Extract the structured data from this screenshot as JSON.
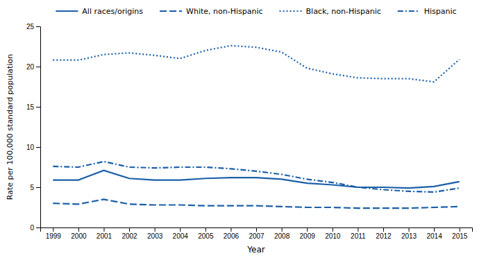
{
  "chart_data": {
    "type": "line",
    "xlabel": "Year",
    "ylabel": "Rate per 100,000 standard population",
    "x": [
      1999,
      2000,
      2001,
      2002,
      2003,
      2004,
      2005,
      2006,
      2007,
      2008,
      2009,
      2010,
      2011,
      2012,
      2013,
      2014,
      2015
    ],
    "series": [
      {
        "name": "All races/origins",
        "color": "#1a5fa8",
        "line_style": "solid",
        "values": [
          5.9,
          5.9,
          7.1,
          6.1,
          5.9,
          5.9,
          6.1,
          6.2,
          6.2,
          6.0,
          5.5,
          5.3,
          5.0,
          5.0,
          4.9,
          5.1,
          5.7
        ]
      },
      {
        "name": "White, non-Hispanic",
        "color": "#1a5fa8",
        "line_style": "dashed",
        "values": [
          3.0,
          2.9,
          3.5,
          2.9,
          2.8,
          2.8,
          2.7,
          2.7,
          2.7,
          2.6,
          2.5,
          2.5,
          2.4,
          2.4,
          2.4,
          2.5,
          2.6
        ]
      },
      {
        "name": "Black, non-Hispanic",
        "color": "#1a5fa8",
        "line_style": "dotted",
        "values": [
          20.8,
          20.8,
          21.5,
          21.7,
          21.4,
          21.0,
          22.0,
          22.6,
          22.4,
          21.8,
          19.8,
          19.1,
          18.6,
          18.5,
          18.5,
          18.1,
          20.9
        ]
      },
      {
        "name": "Hispanic",
        "color": "#1a5fa8",
        "line_style": "dashdot",
        "values": [
          7.6,
          7.5,
          8.2,
          7.5,
          7.4,
          7.5,
          7.5,
          7.3,
          7.0,
          6.6,
          6.0,
          5.6,
          5.0,
          4.7,
          4.5,
          4.4,
          4.9
        ]
      }
    ],
    "xlim": [
      1998.5,
      2015.5
    ],
    "xticks": [
      1999,
      2000,
      2001,
      2002,
      2003,
      2004,
      2005,
      2006,
      2007,
      2008,
      2009,
      2010,
      2011,
      2012,
      2013,
      2014,
      2015
    ],
    "ylim": [
      0,
      25
    ],
    "yticks": [
      0,
      5,
      10,
      15,
      20,
      25
    ],
    "grid": false,
    "legend": "top"
  }
}
